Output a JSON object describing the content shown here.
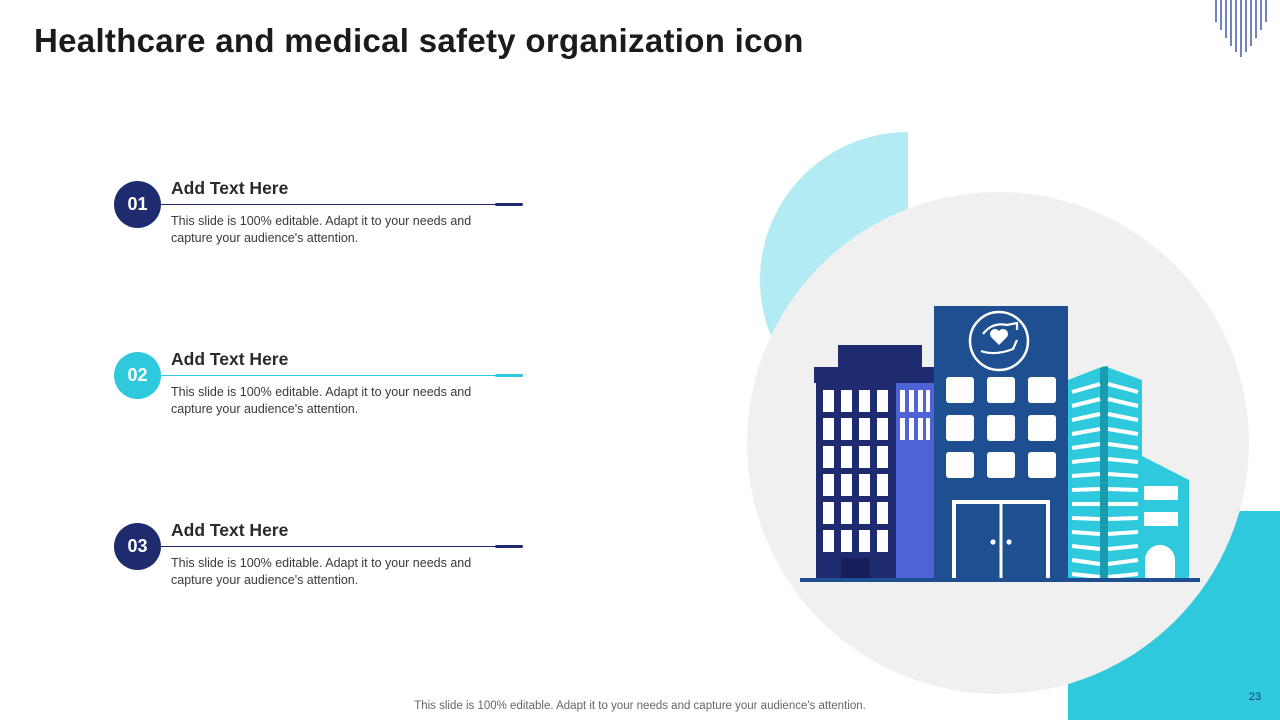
{
  "slide": {
    "title": "Healthcare and medical safety organization icon",
    "footer": "This slide is 100% editable. Adapt it to your needs and capture your audience's attention.",
    "page_number": "23"
  },
  "items": [
    {
      "number": "01",
      "title": "Add Text Here",
      "description": "This slide is 100% editable. Adapt it to your needs and capture your audience's attention.",
      "accent": "#1e2b6e"
    },
    {
      "number": "02",
      "title": "Add Text Here",
      "description": "This slide is 100% editable. Adapt it to your needs and capture your audience's attention.",
      "accent": "#2ec9dc"
    },
    {
      "number": "03",
      "title": "Add Text Here",
      "description": "This slide is 100% editable. Adapt it to your needs and capture your audience's attention.",
      "accent": "#1e2b6e"
    }
  ],
  "colors": {
    "navy": "#1e2b6e",
    "cyan": "#2ec9dc",
    "light_cyan": "#b2ebf4",
    "grey_circle": "#f0f0f1",
    "hospital_blue": "#1e4f91",
    "periwinkle": "#4d63d6"
  },
  "illustration": {
    "icon": "hospital-buildings-icon",
    "emblem_icon": "hand-protecting-heart-icon"
  }
}
